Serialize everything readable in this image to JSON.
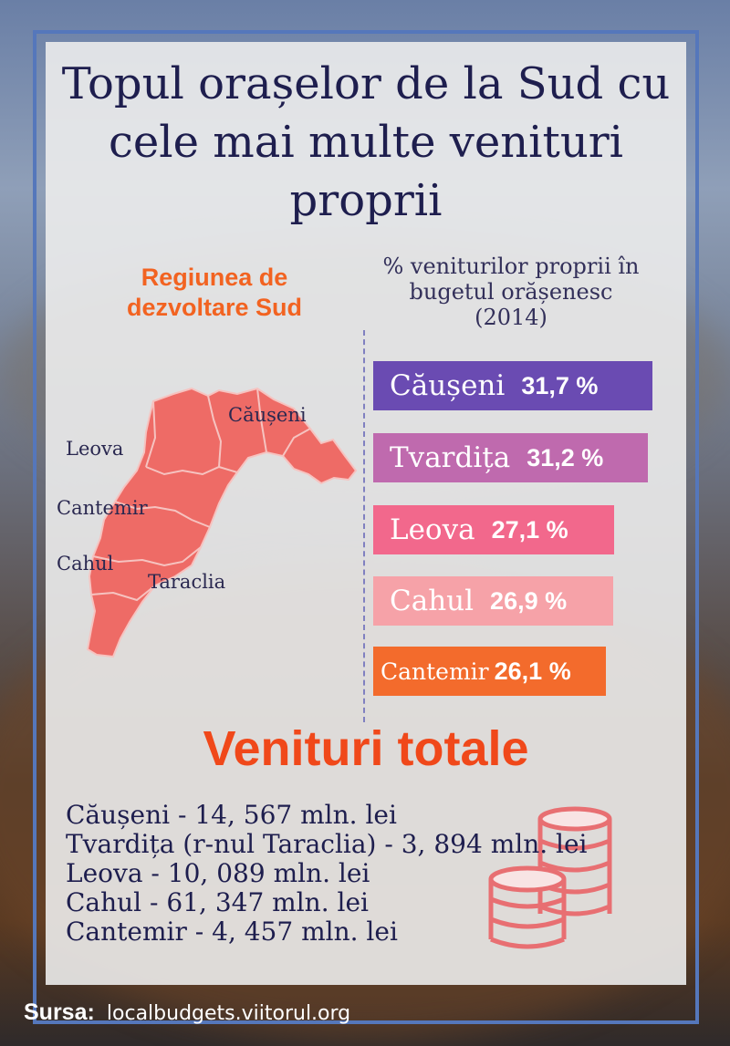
{
  "title": "Topul orașelor de la Sud cu cele mai multe venituri proprii",
  "region_label": "Regiunea de dezvoltare Sud",
  "map_labels": [
    "Căușeni",
    "Leova",
    "Cantemir",
    "Cahul",
    "Taraclia"
  ],
  "colors": {
    "accent": "#f26321",
    "title_text": "#1e1e4e",
    "frame": "#5577bb",
    "map_fill": "#ee6b66",
    "coins": "#e86f72"
  },
  "chart_data": {
    "type": "bar",
    "title": "% veniturilor proprii în bugetul orășenesc (2014)",
    "categories": [
      "Căușeni",
      "Tvardița",
      "Leova",
      "Cahul",
      "Cantemir"
    ],
    "values": [
      31.7,
      31.2,
      27.1,
      26.9,
      26.1
    ],
    "value_labels": [
      "31,7 %",
      "31,2 %",
      "27,1 %",
      "26,9 %",
      "26,1 %"
    ],
    "bar_colors": [
      "#6a4bb2",
      "#bf6aae",
      "#f2688c",
      "#f6a2a8",
      "#f36b2c"
    ],
    "orientation": "horizontal",
    "grid": false
  },
  "totals": {
    "title": "Venituri totale",
    "lines": [
      "Căușeni - 14, 567 mln. lei",
      "Tvardița (r-nul Taraclia) - 3, 894 mln. lei",
      "Leova - 10, 089 mln. lei",
      "Cahul - 61, 347 mln. lei",
      "Cantemir - 4, 457 mln. lei"
    ]
  },
  "source": {
    "label": "Sursa:",
    "url": "localbudgets.viitorul.org"
  }
}
